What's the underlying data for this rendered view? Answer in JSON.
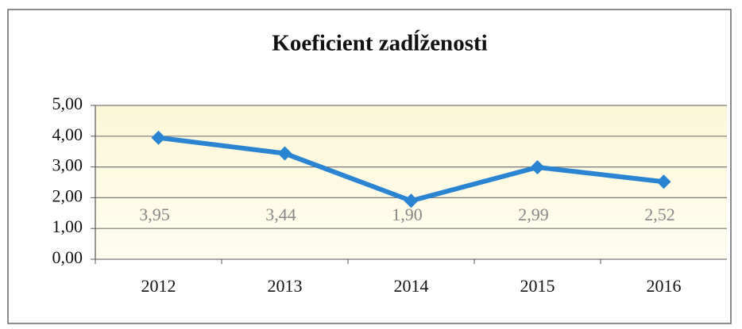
{
  "chart_data": {
    "type": "line",
    "title": "Koeficient zadĺženosti",
    "categories": [
      "2012",
      "2013",
      "2014",
      "2015",
      "2016"
    ],
    "series": [
      {
        "name": "Koeficient zadĺženosti",
        "color": "#2a84d2",
        "values": [
          3.95,
          3.44,
          1.9,
          2.99,
          2.52
        ],
        "value_labels": [
          "3,95",
          "3,44",
          "1,90",
          "2,99",
          "2,52"
        ]
      }
    ],
    "ylim": [
      0,
      5
    ],
    "yticks": [
      {
        "value": 0,
        "label": "0,00"
      },
      {
        "value": 1,
        "label": "1,00"
      },
      {
        "value": 2,
        "label": "2,00"
      },
      {
        "value": 3,
        "label": "3,00"
      },
      {
        "value": 4,
        "label": "4,00"
      },
      {
        "value": 5,
        "label": "5,00"
      }
    ],
    "grid": true
  }
}
